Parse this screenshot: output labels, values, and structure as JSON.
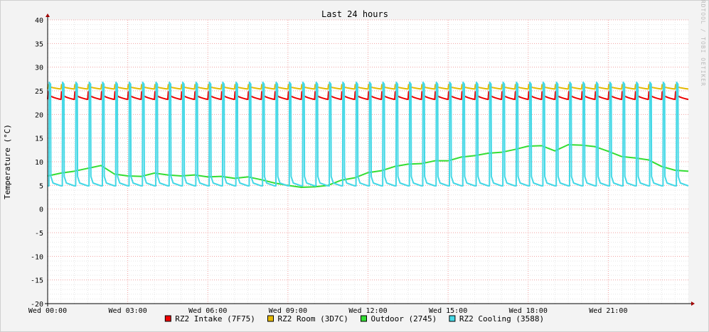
{
  "chart_data": {
    "type": "line",
    "title": "Last 24 hours",
    "ylabel": "Temperature (°C)",
    "xlabel": "",
    "watermark": "RRDTOOL / TOBI OETIKER",
    "ylim": [
      -20,
      40
    ],
    "y_ticks": [
      -20,
      -15,
      -10,
      -5,
      0,
      5,
      10,
      15,
      20,
      25,
      30,
      35,
      40
    ],
    "xlim": [
      0,
      24
    ],
    "x_tick_labels": [
      {
        "label": "Wed 00:00",
        "hour": 0
      },
      {
        "label": "Wed 03:00",
        "hour": 3
      },
      {
        "label": "Wed 06:00",
        "hour": 6
      },
      {
        "label": "Wed 09:00",
        "hour": 9
      },
      {
        "label": "Wed 12:00",
        "hour": 12
      },
      {
        "label": "Wed 15:00",
        "hour": 15
      },
      {
        "label": "Wed 18:00",
        "hour": 18
      },
      {
        "label": "Wed 21:00",
        "hour": 21
      }
    ],
    "grid": true,
    "legend_position": "bottom",
    "series": [
      {
        "name": "RZ2 Intake (7F75)",
        "color": "#ee0000",
        "pattern": "sawtooth",
        "cycle_hours": 0.5,
        "high": 24.8,
        "low": 23.2
      },
      {
        "name": "RZ2 Room (3D7C)",
        "color": "#e4b800",
        "pattern": "sawtooth",
        "cycle_hours": 0.5,
        "high": 26.3,
        "low": 25.4
      },
      {
        "name": "Outdoor (2745)",
        "color": "#33dd33",
        "pattern": "line",
        "x": [
          0,
          0.5,
          1,
          1.5,
          2,
          2.5,
          3,
          3.5,
          4,
          4.5,
          5,
          5.5,
          6,
          6.5,
          7,
          7.5,
          8,
          8.5,
          9,
          9.5,
          10,
          10.5,
          11,
          11.5,
          12,
          12.5,
          13,
          13.5,
          14,
          14.5,
          15,
          15.5,
          16,
          16.5,
          17,
          17.5,
          18,
          18.5,
          19,
          19.5,
          20,
          20.5,
          21,
          21.5,
          22,
          22.5,
          23,
          23.5,
          24
        ],
        "values": [
          7.0,
          7.6,
          8.0,
          8.6,
          9.2,
          7.4,
          7.0,
          6.9,
          7.6,
          7.2,
          7.0,
          7.2,
          6.8,
          6.9,
          6.5,
          6.8,
          6.2,
          5.5,
          5.0,
          4.6,
          4.7,
          5.0,
          6.1,
          6.6,
          7.7,
          8.1,
          9.0,
          9.5,
          9.6,
          10.2,
          10.2,
          11.0,
          11.3,
          11.8,
          12.0,
          12.6,
          13.3,
          13.4,
          12.3,
          13.6,
          13.5,
          13.2,
          12.2,
          11.1,
          10.8,
          10.4,
          9.0,
          8.2,
          8.0
        ]
      },
      {
        "name": "RZ2 Cooling (3588)",
        "color": "#44d8e6",
        "pattern": "pulse",
        "cycle_hours": 0.5,
        "high": 26.8,
        "low": 4.9
      }
    ]
  }
}
